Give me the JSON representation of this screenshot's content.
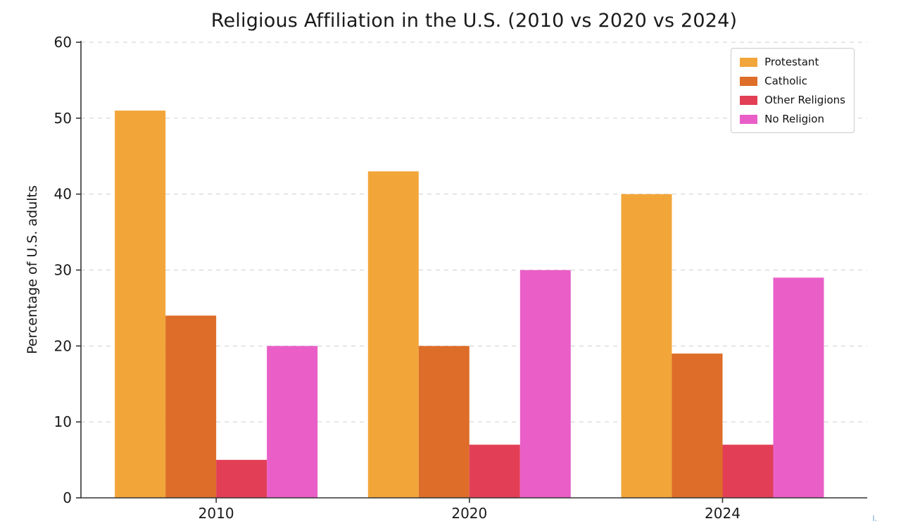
{
  "page": {
    "background": "#ffffff",
    "corner_artifact": "l."
  },
  "chart_data": {
    "type": "bar",
    "title": "Religious Affiliation in the U.S. (2010 vs 2020 vs 2024)",
    "xlabel": "",
    "ylabel": "Percentage of U.S. adults",
    "categories": [
      "2010",
      "2020",
      "2024"
    ],
    "series": [
      {
        "name": "Protestant",
        "color": "#F2A63A",
        "values": [
          51,
          43,
          40
        ]
      },
      {
        "name": "Catholic",
        "color": "#DD6D28",
        "values": [
          24,
          20,
          19
        ]
      },
      {
        "name": "Other Religions",
        "color": "#E23F56",
        "values": [
          5,
          7,
          7
        ]
      },
      {
        "name": "No Religion",
        "color": "#E95FC7",
        "values": [
          20,
          30,
          29
        ]
      }
    ],
    "ylim": [
      0,
      60
    ],
    "yticks": [
      0,
      10,
      20,
      30,
      40,
      50,
      60
    ],
    "grid": "dashed-horizontal",
    "grid_color": "#cfcfcf",
    "axis_color": "#333333",
    "tick_label_color": "#1a1a1a",
    "legend_position": "upper-right"
  }
}
